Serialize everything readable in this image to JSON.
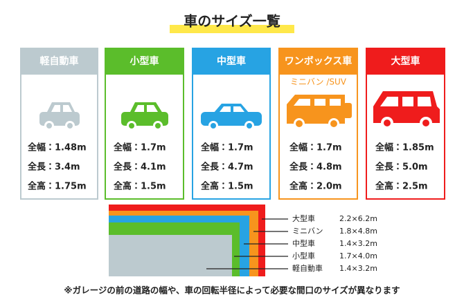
{
  "title": "車のサイズ一覧",
  "cards": [
    {
      "name": "軽自動車",
      "specs": [
        "全幅：1.48m",
        "全長：3.4m",
        "全高：1.75m"
      ]
    },
    {
      "name": "小型車",
      "specs": [
        "全幅：1.7m",
        "全長：4.1m",
        "全高：1.5m"
      ]
    },
    {
      "name": "中型車",
      "specs": [
        "全幅：1.7m",
        "全長：4.7m",
        "全高：1.5m"
      ]
    },
    {
      "name": "ワンボックス車",
      "subtitle": "ミニバン /SUV",
      "specs": [
        "全幅：1.7m",
        "全長：4.8m",
        "全高：2.0m"
      ]
    },
    {
      "name": "大型車",
      "specs": [
        "全幅：1.85m",
        "全長：5.0m",
        "全高：2.5m"
      ]
    }
  ],
  "diagram": {
    "legend": [
      {
        "name": "大型車",
        "size": "2.2×6.2m"
      },
      {
        "name": "ミニバン",
        "size": "1.8×4.8m"
      },
      {
        "name": "中型車",
        "size": "1.4×3.2m"
      },
      {
        "name": "小型車",
        "size": "1.7×4.0m"
      },
      {
        "name": "軽自動車",
        "size": "1.4×3.2m"
      }
    ]
  },
  "note": "※ガレージの前の道路の幅や、車の回転半径によって必要な間口のサイズが異なります"
}
